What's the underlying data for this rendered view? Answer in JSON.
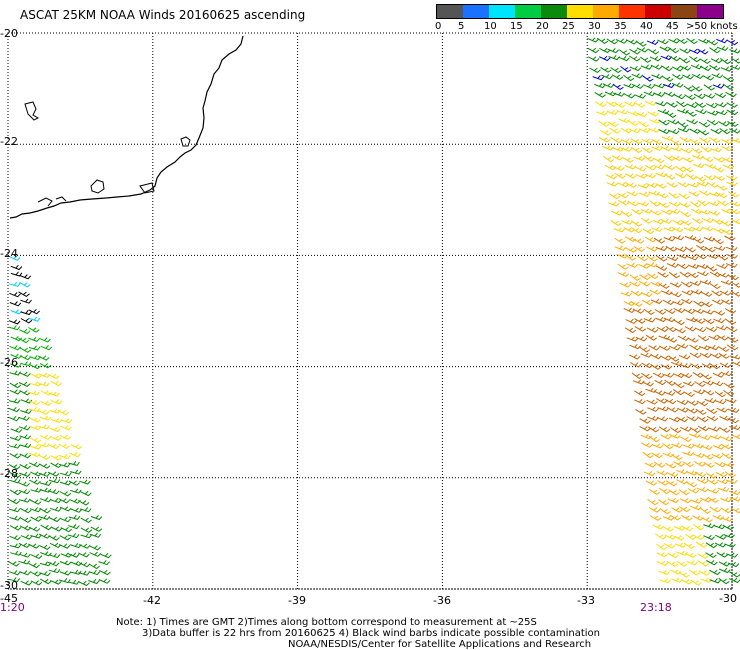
{
  "title": "ASCAT 25KM NOAA Winds 20160625 ascending",
  "legend": {
    "labels": [
      "0",
      "5",
      "10",
      "15",
      "20",
      "25",
      "30",
      "35",
      "40",
      "45",
      ">50 knots"
    ],
    "colors": [
      "#555555",
      "#1a73ff",
      "#00e5ff",
      "#00cc44",
      "#0b8a0b",
      "#ffdd00",
      "#ffaa00",
      "#ff3300",
      "#cc0000",
      "#8b4513",
      "#8b008b"
    ]
  },
  "map": {
    "lat_labels": [
      "-20",
      "-22",
      "-24",
      "-26",
      "-28",
      "-30"
    ],
    "lon_labels": [
      "-45",
      "-42",
      "-39",
      "-36",
      "-33",
      "-30"
    ],
    "left_time": "1:20",
    "right_time": "23:18",
    "lon_range": [
      -45,
      -30
    ],
    "lat_range": [
      -30,
      -20
    ],
    "grid": "dotted"
  },
  "notes": {
    "line1": "Note: 1) Times are GMT 2)Times along bottom correspond to measurement at ~25S",
    "line2": "3)Data buffer is 22 hrs from 20160625 4) Black wind barbs indicate possible contamination",
    "line3": "NOAA/NESDIS/Center for Satellite Applications and Research"
  }
}
